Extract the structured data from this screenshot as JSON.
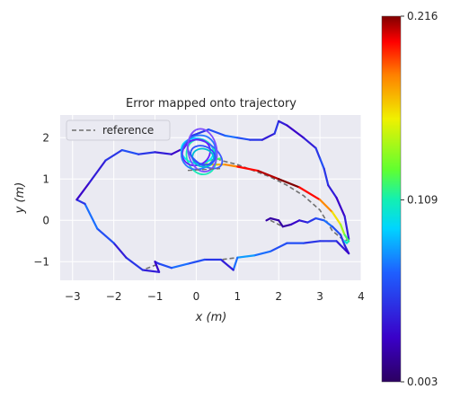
{
  "chart_data": {
    "type": "line",
    "title": "Error mapped onto trajectory",
    "xlabel": "x (m)",
    "ylabel": "y (m)",
    "xlim": [
      -3.3,
      4.0
    ],
    "ylim": [
      -1.45,
      2.55
    ],
    "xticks": [
      -3,
      -2,
      -1,
      0,
      1,
      2,
      3,
      4
    ],
    "yticks": [
      -1,
      0,
      1,
      2
    ],
    "xtick_labels": [
      "−3",
      "−2",
      "−1",
      "0",
      "1",
      "2",
      "3",
      "4"
    ],
    "ytick_labels": [
      "−1",
      "0",
      "1",
      "2"
    ],
    "grid": true,
    "legend": {
      "placement": "top-left",
      "entries": [
        "reference"
      ]
    },
    "colorbar": {
      "min": 0.003,
      "max": 0.216,
      "tick_values": [
        0.003,
        0.109,
        0.216
      ],
      "tick_labels": [
        "0.003",
        "0.109",
        "0.216"
      ],
      "colormap": "jet"
    },
    "series": [
      {
        "name": "reference",
        "style": "dashed",
        "x": [
          1.8,
          2.1,
          2.3,
          2.5,
          2.7,
          2.9,
          3.1,
          3.3,
          3.5,
          3.6,
          3.7,
          3.6,
          3.4,
          3.0,
          2.6,
          2.2,
          1.8,
          1.4,
          1.0,
          0.6,
          0.2,
          -0.2,
          -0.6,
          -0.9,
          -1.3,
          -1.7,
          -2.0,
          -2.4,
          -2.7,
          -2.9,
          -2.6,
          -2.2,
          -1.8,
          -1.4,
          -1.0,
          -0.6,
          -0.3,
          -0.1,
          0.3,
          0.7,
          1.0,
          1.3,
          1.6,
          1.9,
          2.0,
          2.2,
          2.6,
          2.9,
          3.0,
          3.1,
          3.2,
          3.4,
          3.6,
          3.7,
          3.6,
          3.3,
          3.0,
          2.6,
          2.2,
          1.8,
          1.4,
          1.0,
          0.6,
          0.4
        ],
        "y": [
          0.0,
          -0.15,
          -0.1,
          0.0,
          -0.05,
          0.05,
          0.0,
          -0.15,
          -0.35,
          -0.6,
          -0.8,
          -0.7,
          -0.5,
          -0.5,
          -0.55,
          -0.55,
          -0.75,
          -0.85,
          -0.9,
          -0.95,
          -0.95,
          -1.05,
          -1.15,
          -1.05,
          -1.2,
          -0.9,
          -0.55,
          -0.2,
          0.4,
          0.5,
          0.9,
          1.45,
          1.7,
          1.6,
          1.65,
          1.6,
          1.75,
          2.05,
          2.2,
          2.05,
          2.0,
          1.95,
          1.95,
          2.1,
          2.4,
          2.3,
          2.0,
          1.75,
          1.5,
          1.25,
          0.85,
          0.55,
          0.1,
          -0.45,
          -0.5,
          -0.25,
          0.25,
          0.6,
          0.85,
          1.05,
          1.2,
          1.35,
          1.45,
          1.55
        ]
      }
    ],
    "trajectory": {
      "x": [
        1.7,
        1.8,
        2.0,
        2.1,
        2.3,
        2.5,
        2.7,
        2.9,
        3.1,
        3.3,
        3.5,
        3.6,
        3.7,
        3.6,
        3.4,
        3.0,
        2.6,
        2.2,
        1.8,
        1.4,
        1.0,
        0.9,
        0.6,
        0.2,
        -0.2,
        -0.6,
        -0.9,
        -1.0,
        -0.9,
        -1.3,
        -1.7,
        -2.0,
        -2.4,
        -2.7,
        -2.9,
        -2.6,
        -2.2,
        -1.8,
        -1.4,
        -1.0,
        -0.6,
        -0.3,
        -0.1,
        0.3,
        0.7,
        1.0,
        1.3,
        1.6,
        1.9,
        2.0,
        2.2,
        2.6,
        2.9,
        3.0,
        3.1,
        3.2,
        3.4,
        3.6,
        3.7
      ],
      "y": [
        0.0,
        0.05,
        0.0,
        -0.15,
        -0.1,
        0.0,
        -0.05,
        0.05,
        0.0,
        -0.15,
        -0.35,
        -0.6,
        -0.8,
        -0.7,
        -0.5,
        -0.5,
        -0.55,
        -0.55,
        -0.75,
        -0.85,
        -0.9,
        -1.2,
        -0.95,
        -0.95,
        -1.05,
        -1.15,
        -1.05,
        -1.0,
        -1.25,
        -1.2,
        -0.9,
        -0.55,
        -0.2,
        0.4,
        0.5,
        0.9,
        1.45,
        1.7,
        1.6,
        1.65,
        1.6,
        1.75,
        2.05,
        2.2,
        2.05,
        2.0,
        1.95,
        1.95,
        2.1,
        2.4,
        2.3,
        2.0,
        1.75,
        1.5,
        1.25,
        0.85,
        0.55,
        0.1,
        -0.45
      ],
      "error": [
        0.02,
        0.02,
        0.02,
        0.02,
        0.03,
        0.04,
        0.05,
        0.06,
        0.07,
        0.06,
        0.05,
        0.04,
        0.03,
        0.04,
        0.05,
        0.05,
        0.06,
        0.06,
        0.07,
        0.08,
        0.07,
        0.04,
        0.05,
        0.06,
        0.07,
        0.06,
        0.05,
        0.03,
        0.04,
        0.05,
        0.04,
        0.06,
        0.07,
        0.05,
        0.03,
        0.04,
        0.05,
        0.06,
        0.05,
        0.04,
        0.03,
        0.04,
        0.05,
        0.06,
        0.07,
        0.06,
        0.05,
        0.04,
        0.05,
        0.04,
        0.03,
        0.04,
        0.05,
        0.06,
        0.05,
        0.04,
        0.03,
        0.04,
        0.05
      ]
    },
    "loop_trajectory": {
      "x": [
        0.6,
        0.3,
        0.2,
        0.4,
        0.7,
        1.0,
        1.5,
        2.0,
        2.5,
        3.0,
        3.3,
        3.5,
        3.6,
        3.7,
        3.65,
        3.6
      ],
      "y": [
        1.5,
        1.45,
        1.35,
        1.35,
        1.35,
        1.3,
        1.2,
        1.0,
        0.8,
        0.5,
        0.2,
        -0.1,
        -0.35,
        -0.5,
        -0.55,
        -0.5
      ],
      "error": [
        0.12,
        0.14,
        0.16,
        0.17,
        0.18,
        0.2,
        0.21,
        0.216,
        0.2,
        0.18,
        0.16,
        0.14,
        0.12,
        0.11,
        0.1,
        0.1
      ]
    },
    "cluster": {
      "center": [
        0.1,
        1.6
      ],
      "colors": [
        "#00e5ff",
        "#1de9b6",
        "#3d5afe",
        "#651fff",
        "#2979ff",
        "#00bcd4",
        "#7c4dff",
        "#304ffe"
      ]
    }
  }
}
